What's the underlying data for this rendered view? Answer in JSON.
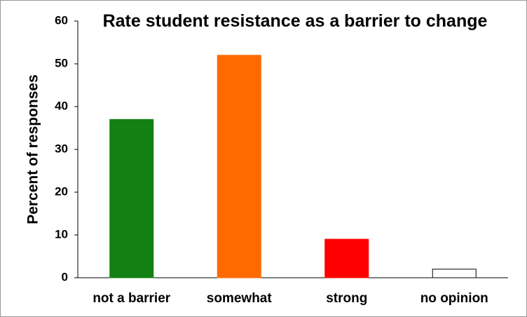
{
  "chart_data": {
    "type": "bar",
    "title": "Rate student resistance as a barrier to change",
    "y_label": "Percent of responses",
    "categories": [
      "not a barrier",
      "somewhat",
      "strong",
      "no opinion"
    ],
    "values": [
      37,
      52,
      9,
      2
    ],
    "colors": [
      "#138013",
      "#ff6a00",
      "#ff0000",
      "#ffffff"
    ],
    "ylim": [
      0,
      60
    ],
    "yticks": [
      0,
      10,
      20,
      30,
      40,
      50,
      60
    ],
    "grid": false
  }
}
